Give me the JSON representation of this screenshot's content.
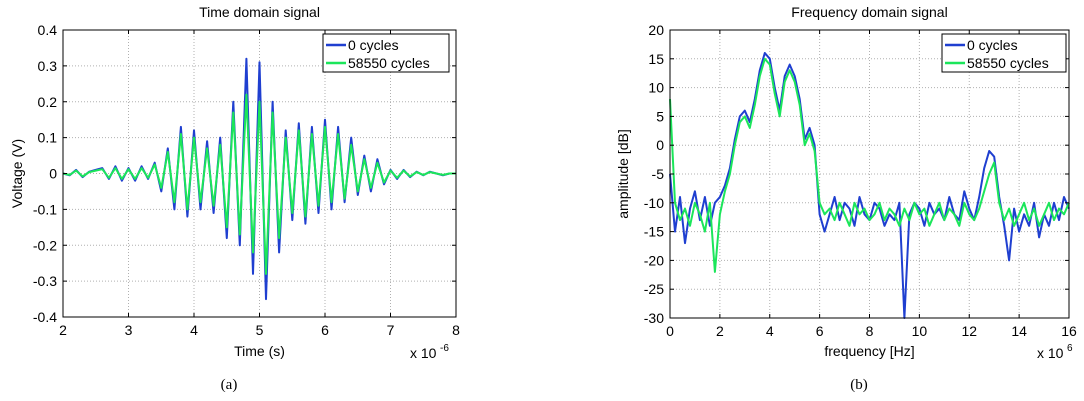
{
  "chart_data": [
    {
      "type": "line",
      "panel_label": "(a)",
      "title": "Time domain signal",
      "xlabel": "Time (s)",
      "ylabel": "Voltage (V)",
      "x_exponent_base": "x 10",
      "x_exponent_power": "-6",
      "xlim": [
        2,
        8
      ],
      "ylim": [
        -0.4,
        0.4
      ],
      "xticks": [
        "2",
        "3",
        "4",
        "5",
        "6",
        "7",
        "8"
      ],
      "yticks": [
        "0.4",
        "0.3",
        "0.2",
        "0.1",
        "0",
        "-0.1",
        "-0.2",
        "-0.3",
        "-0.4"
      ],
      "grid": true,
      "legend_position": "top-right",
      "series": [
        {
          "name": "0 cycles",
          "color": "#1f3fd0",
          "x": [
            2.0,
            2.1,
            2.2,
            2.3,
            2.4,
            2.5,
            2.6,
            2.7,
            2.8,
            2.9,
            3.0,
            3.1,
            3.2,
            3.3,
            3.4,
            3.5,
            3.6,
            3.7,
            3.8,
            3.9,
            4.0,
            4.1,
            4.2,
            4.3,
            4.4,
            4.5,
            4.6,
            4.7,
            4.8,
            4.9,
            5.0,
            5.1,
            5.2,
            5.3,
            5.4,
            5.5,
            5.6,
            5.7,
            5.8,
            5.9,
            6.0,
            6.1,
            6.2,
            6.3,
            6.4,
            6.5,
            6.6,
            6.7,
            6.8,
            6.9,
            7.0,
            7.1,
            7.2,
            7.3,
            7.4,
            7.5,
            7.6,
            7.7,
            7.8,
            7.9,
            8.0
          ],
          "y": [
            0.0,
            -0.005,
            0.01,
            -0.01,
            0.005,
            0.01,
            0.015,
            -0.015,
            0.02,
            -0.02,
            0.015,
            -0.02,
            0.02,
            -0.015,
            0.03,
            -0.05,
            0.07,
            -0.1,
            0.13,
            -0.12,
            0.12,
            -0.1,
            0.09,
            -0.11,
            0.1,
            -0.18,
            0.2,
            -0.2,
            0.32,
            -0.28,
            0.31,
            -0.35,
            0.2,
            -0.22,
            0.12,
            -0.13,
            0.14,
            -0.14,
            0.13,
            -0.11,
            0.15,
            -0.1,
            0.13,
            -0.08,
            0.1,
            -0.06,
            0.05,
            -0.05,
            0.04,
            -0.03,
            0.01,
            -0.015,
            0.01,
            -0.01,
            0.005,
            -0.005,
            0.005,
            0.0,
            -0.005,
            0.0,
            0.0
          ]
        },
        {
          "name": "58550 cycles",
          "color": "#1be65a",
          "x": [
            2.0,
            2.1,
            2.2,
            2.3,
            2.4,
            2.5,
            2.6,
            2.7,
            2.8,
            2.9,
            3.0,
            3.1,
            3.2,
            3.3,
            3.4,
            3.5,
            3.6,
            3.7,
            3.8,
            3.9,
            4.0,
            4.1,
            4.2,
            4.3,
            4.4,
            4.5,
            4.6,
            4.7,
            4.8,
            4.9,
            5.0,
            5.1,
            5.2,
            5.3,
            5.4,
            5.5,
            5.6,
            5.7,
            5.8,
            5.9,
            6.0,
            6.1,
            6.2,
            6.3,
            6.4,
            6.5,
            6.6,
            6.7,
            6.8,
            6.9,
            7.0,
            7.1,
            7.2,
            7.3,
            7.4,
            7.5,
            7.6,
            7.7,
            7.8,
            7.9,
            8.0
          ],
          "y": [
            0.0,
            -0.004,
            0.008,
            -0.008,
            0.004,
            0.008,
            0.012,
            -0.012,
            0.015,
            -0.015,
            0.012,
            -0.015,
            0.015,
            -0.012,
            0.025,
            -0.04,
            0.06,
            -0.08,
            0.11,
            -0.1,
            0.1,
            -0.08,
            0.07,
            -0.09,
            0.08,
            -0.15,
            0.17,
            -0.17,
            0.22,
            -0.22,
            0.2,
            -0.28,
            0.17,
            -0.18,
            0.1,
            -0.11,
            0.12,
            -0.12,
            0.11,
            -0.09,
            0.13,
            -0.08,
            0.11,
            -0.07,
            0.08,
            -0.05,
            0.04,
            -0.04,
            0.03,
            -0.025,
            0.008,
            -0.012,
            0.008,
            -0.008,
            0.004,
            -0.004,
            0.004,
            0.0,
            -0.004,
            0.0,
            0.0
          ]
        }
      ]
    },
    {
      "type": "line",
      "panel_label": "(b)",
      "title": "Frequency domain signal",
      "xlabel": "frequency [Hz]",
      "ylabel": "amplitude [dB]",
      "x_exponent_base": "x 10",
      "x_exponent_power": "6",
      "xlim": [
        0,
        16
      ],
      "ylim": [
        -30,
        20
      ],
      "xticks": [
        "0",
        "2",
        "4",
        "6",
        "8",
        "10",
        "12",
        "14",
        "16"
      ],
      "yticks": [
        "20",
        "15",
        "10",
        "5",
        "0",
        "-5",
        "-10",
        "-15",
        "-20",
        "-25",
        "-30"
      ],
      "grid": true,
      "legend_position": "top-right",
      "series": [
        {
          "name": "0 cycles",
          "color": "#1f3fd0",
          "x": [
            0.0,
            0.2,
            0.4,
            0.6,
            0.8,
            1.0,
            1.2,
            1.4,
            1.6,
            1.8,
            2.0,
            2.2,
            2.4,
            2.6,
            2.8,
            3.0,
            3.2,
            3.4,
            3.6,
            3.8,
            4.0,
            4.2,
            4.4,
            4.6,
            4.8,
            5.0,
            5.2,
            5.4,
            5.6,
            5.8,
            6.0,
            6.2,
            6.4,
            6.6,
            6.8,
            7.0,
            7.2,
            7.4,
            7.6,
            7.8,
            8.0,
            8.2,
            8.4,
            8.6,
            8.8,
            9.0,
            9.2,
            9.4,
            9.6,
            9.8,
            10.0,
            10.2,
            10.4,
            10.6,
            10.8,
            11.0,
            11.2,
            11.4,
            11.6,
            11.8,
            12.0,
            12.2,
            12.4,
            12.6,
            12.8,
            13.0,
            13.2,
            13.4,
            13.6,
            13.8,
            14.0,
            14.2,
            14.4,
            14.6,
            14.8,
            15.0,
            15.2,
            15.4,
            15.6,
            15.8,
            16.0
          ],
          "y": [
            -5,
            -15,
            -9,
            -17,
            -11,
            -8,
            -13,
            -9,
            -14,
            -10,
            -9,
            -7,
            -4,
            1,
            5,
            6,
            4,
            8,
            13,
            16,
            15,
            10,
            6,
            12,
            14,
            12,
            8,
            1,
            3,
            0,
            -12,
            -15,
            -12,
            -9,
            -13,
            -10,
            -11,
            -14,
            -9,
            -12,
            -13,
            -10,
            -11,
            -14,
            -12,
            -13,
            -10,
            -30,
            -12,
            -10,
            -11,
            -14,
            -10,
            -12,
            -11,
            -13,
            -9,
            -12,
            -13,
            -8,
            -11,
            -13,
            -9,
            -4,
            -1,
            -2,
            -9,
            -14,
            -20,
            -11,
            -15,
            -12,
            -14,
            -10,
            -16,
            -12,
            -14,
            -10,
            -13,
            -9,
            -11
          ]
        },
        {
          "name": "58550 cycles",
          "color": "#1be65a",
          "x": [
            0.0,
            0.2,
            0.4,
            0.6,
            0.8,
            1.0,
            1.2,
            1.4,
            1.6,
            1.8,
            2.0,
            2.2,
            2.4,
            2.6,
            2.8,
            3.0,
            3.2,
            3.4,
            3.6,
            3.8,
            4.0,
            4.2,
            4.4,
            4.6,
            4.8,
            5.0,
            5.2,
            5.4,
            5.6,
            5.8,
            6.0,
            6.2,
            6.4,
            6.6,
            6.8,
            7.0,
            7.2,
            7.4,
            7.6,
            7.8,
            8.0,
            8.2,
            8.4,
            8.6,
            8.8,
            9.0,
            9.2,
            9.4,
            9.6,
            9.8,
            10.0,
            10.2,
            10.4,
            10.6,
            10.8,
            11.0,
            11.2,
            11.4,
            11.6,
            11.8,
            12.0,
            12.2,
            12.4,
            12.6,
            12.8,
            13.0,
            13.2,
            13.4,
            13.6,
            13.8,
            14.0,
            14.2,
            14.4,
            14.6,
            14.8,
            15.0,
            15.2,
            15.4,
            15.6,
            15.8,
            16.0
          ],
          "y": [
            8,
            -10,
            -13,
            -11,
            -14,
            -10,
            -12,
            -15,
            -10,
            -22,
            -12,
            -8,
            -5,
            0,
            4,
            5,
            3,
            7,
            12,
            15,
            14,
            9,
            5,
            11,
            13,
            11,
            7,
            0,
            2,
            -1,
            -10,
            -12,
            -11,
            -13,
            -10,
            -12,
            -14,
            -10,
            -12,
            -11,
            -13,
            -12,
            -10,
            -13,
            -11,
            -12,
            -14,
            -11,
            -13,
            -10,
            -12,
            -11,
            -14,
            -12,
            -10,
            -13,
            -11,
            -12,
            -14,
            -10,
            -12,
            -13,
            -11,
            -8,
            -5,
            -3,
            -10,
            -13,
            -11,
            -14,
            -12,
            -10,
            -13,
            -11,
            -14,
            -12,
            -10,
            -13,
            -11,
            -12,
            -10
          ]
        }
      ]
    }
  ]
}
